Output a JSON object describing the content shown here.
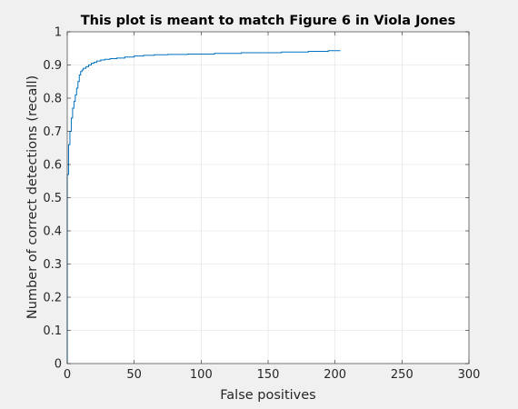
{
  "chart_data": {
    "type": "line",
    "title": "This plot is meant to match Figure 6 in Viola Jones",
    "xlabel": "False positives",
    "ylabel": "Number of correct detections (recall)",
    "xlim": [
      0,
      300
    ],
    "ylim": [
      0,
      1
    ],
    "xticks": [
      0,
      50,
      100,
      150,
      200,
      250,
      300
    ],
    "yticks": [
      0,
      0.1,
      0.2,
      0.3,
      0.4,
      0.5,
      0.6,
      0.7,
      0.8,
      0.9,
      1
    ],
    "ytick_labels": [
      "0",
      "0.1",
      "0.2",
      "0.3",
      "0.4",
      "0.5",
      "0.6",
      "0.7",
      "0.8",
      "0.9",
      "1"
    ],
    "grid": true,
    "line_color": "#0072bd",
    "series": [
      {
        "x": [
          0,
          0,
          1,
          1,
          2,
          2,
          3,
          3,
          4,
          4,
          5,
          5,
          6,
          6,
          7,
          7,
          8,
          8,
          9,
          9,
          10,
          10,
          11,
          11,
          12,
          12,
          14,
          14,
          16,
          16,
          18,
          18,
          20,
          20,
          22,
          22,
          25,
          25,
          28,
          28,
          32,
          32,
          37,
          37,
          43,
          43,
          50,
          50,
          57,
          57,
          65,
          65,
          75,
          75,
          90,
          90,
          110,
          110,
          130,
          130,
          160,
          160,
          180,
          180,
          195,
          195,
          204
        ],
        "y": [
          0,
          0.57,
          0.57,
          0.66,
          0.66,
          0.7,
          0.7,
          0.74,
          0.74,
          0.77,
          0.77,
          0.79,
          0.79,
          0.81,
          0.81,
          0.83,
          0.83,
          0.85,
          0.85,
          0.87,
          0.87,
          0.88,
          0.88,
          0.885,
          0.885,
          0.89,
          0.89,
          0.895,
          0.895,
          0.9,
          0.9,
          0.905,
          0.905,
          0.908,
          0.908,
          0.912,
          0.912,
          0.915,
          0.915,
          0.917,
          0.917,
          0.919,
          0.919,
          0.921,
          0.921,
          0.924,
          0.924,
          0.927,
          0.927,
          0.929,
          0.929,
          0.931,
          0.931,
          0.932,
          0.932,
          0.933,
          0.933,
          0.935,
          0.935,
          0.937,
          0.937,
          0.939,
          0.939,
          0.941,
          0.941,
          0.943,
          0.943
        ]
      }
    ]
  }
}
